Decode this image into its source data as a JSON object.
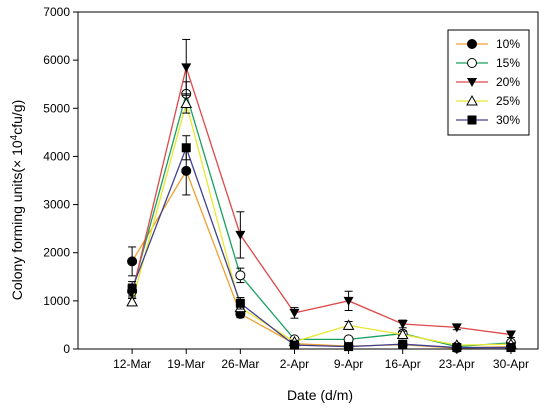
{
  "chart_data": {
    "type": "line",
    "xlabel": "Date (d/m)",
    "ylabel_main": "Colony  forming units(× 10",
    "ylabel_sup": "4",
    "ylabel_end": "cfu/g)",
    "categories": [
      "12-Mar",
      "19-Mar",
      "26-Mar",
      "2-Apr",
      "9-Apr",
      "16-Apr",
      "23-Apr",
      "30-Apr"
    ],
    "ylim": [
      0,
      7000
    ],
    "yticks": [
      0,
      1000,
      2000,
      3000,
      4000,
      5000,
      6000,
      7000
    ],
    "legend_position": "top-right",
    "grid": false,
    "series": [
      {
        "name": "10%",
        "color": "#f0a030",
        "marker": "circle-filled",
        "values": [
          1820,
          3700,
          730,
          110,
          60,
          90,
          20,
          50
        ],
        "errors": [
          300,
          500,
          80,
          20,
          15,
          20,
          10,
          15
        ]
      },
      {
        "name": "15%",
        "color": "#18a060",
        "marker": "circle-open",
        "values": [
          1200,
          5300,
          1530,
          200,
          200,
          320,
          50,
          130
        ],
        "errors": [
          150,
          250,
          150,
          40,
          40,
          60,
          20,
          30
        ]
      },
      {
        "name": "20%",
        "color": "#e04848",
        "marker": "triangle-down-filled",
        "values": [
          1150,
          5850,
          2370,
          750,
          1000,
          520,
          450,
          300
        ],
        "errors": [
          100,
          580,
          480,
          110,
          200,
          80,
          50,
          60
        ]
      },
      {
        "name": "25%",
        "color": "#e8e830",
        "marker": "triangle-up-open",
        "values": [
          980,
          5100,
          860,
          150,
          490,
          300,
          80,
          100
        ],
        "errors": [
          80,
          200,
          100,
          30,
          80,
          70,
          20,
          30
        ]
      },
      {
        "name": "30%",
        "color": "#404090",
        "marker": "square-filled",
        "values": [
          1250,
          4180,
          950,
          80,
          50,
          100,
          30,
          30
        ],
        "errors": [
          150,
          250,
          120,
          20,
          15,
          25,
          10,
          10
        ]
      }
    ]
  }
}
